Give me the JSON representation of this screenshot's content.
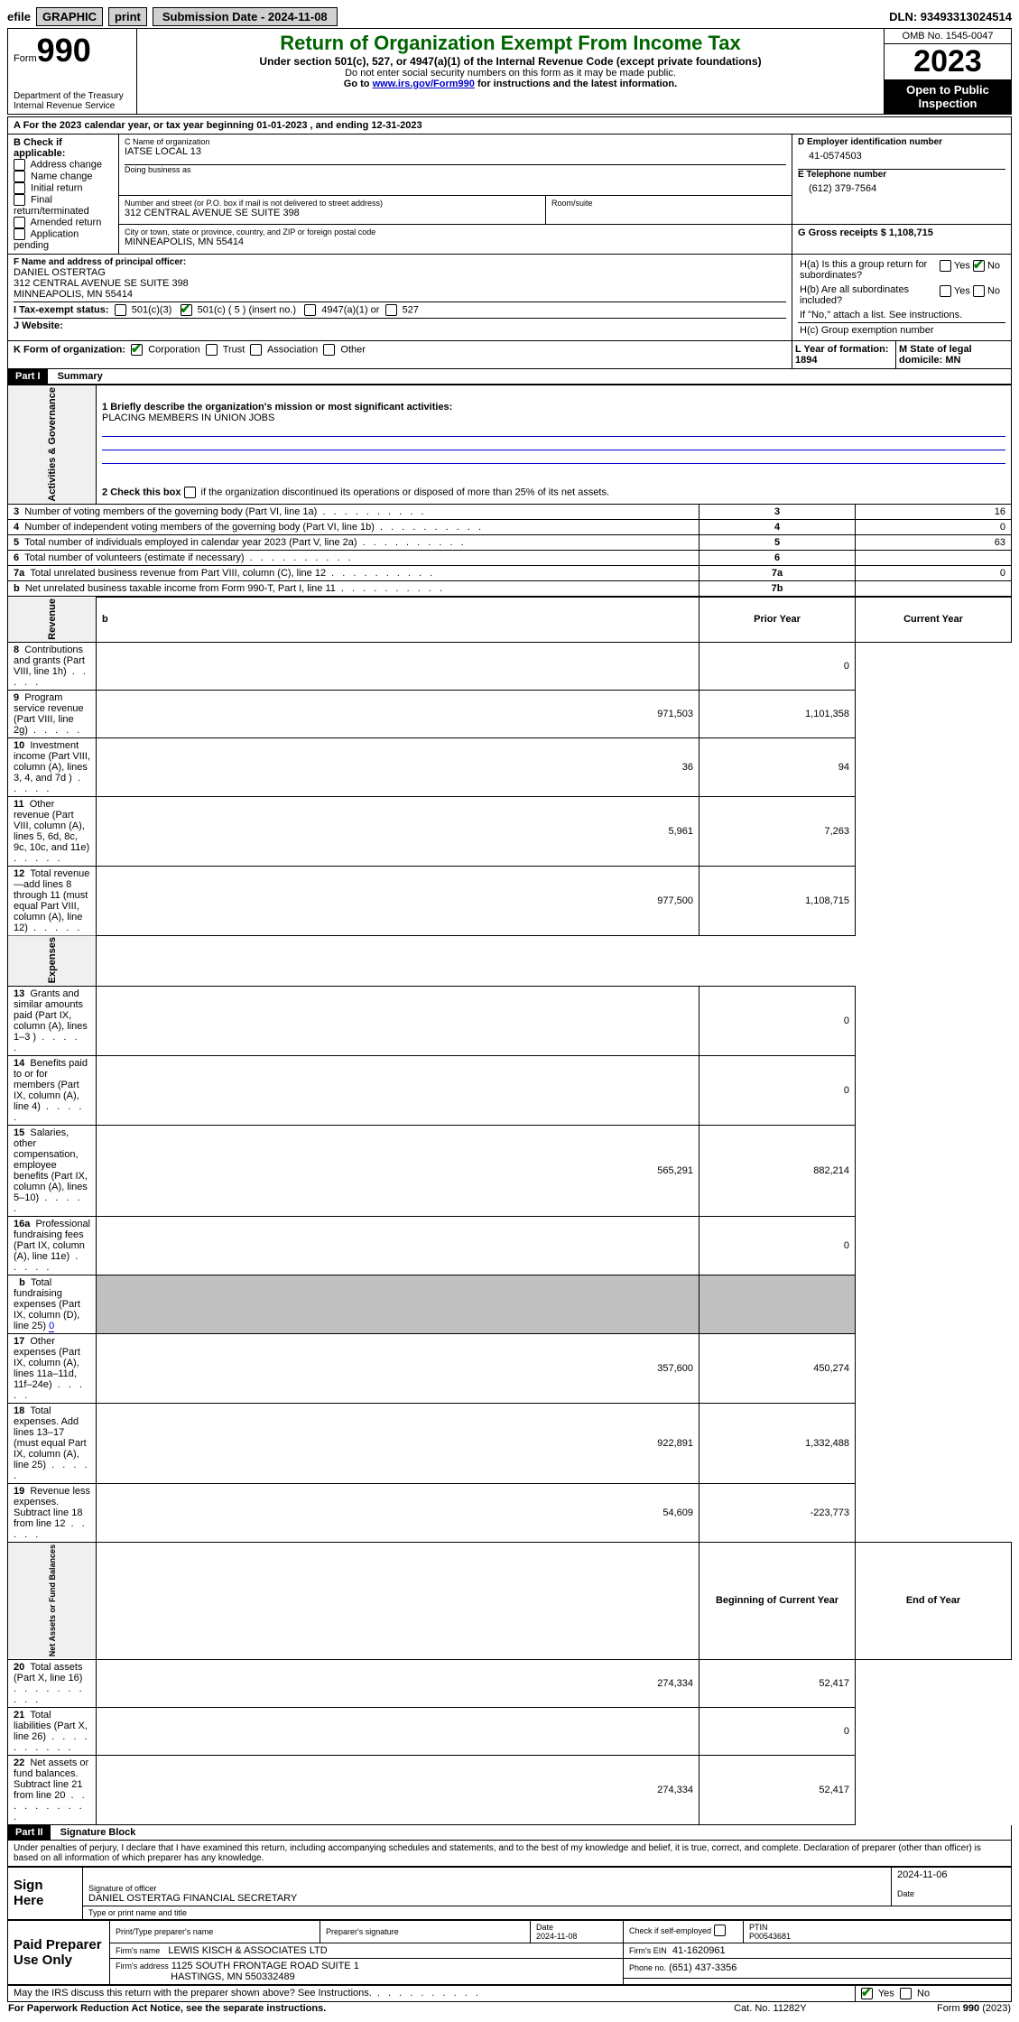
{
  "topbar": {
    "efile": "efile",
    "graphic": "GRAPHIC",
    "print": "print",
    "submission_label": "Submission Date - 2024-11-08",
    "dln_label": "DLN: 93493313024514"
  },
  "header": {
    "form_label": "Form",
    "form_number": "990",
    "title": "Return of Organization Exempt From Income Tax",
    "subtitle": "Under section 501(c), 527, or 4947(a)(1) of the Internal Revenue Code (except private foundations)",
    "ssn_note": "Do not enter social security numbers on this form as it may be made public.",
    "goto_prefix": "Go to ",
    "goto_link": "www.irs.gov/Form990",
    "goto_suffix": " for instructions and the latest information.",
    "department": "Department of the Treasury\nInternal Revenue Service",
    "omb": "OMB No. 1545-0047",
    "year": "2023",
    "open_public": "Open to Public Inspection"
  },
  "section_a": {
    "line_a": "A For the 2023 calendar year, or tax year beginning 01-01-2023    , and ending 12-31-2023",
    "b_label": "B Check if applicable:",
    "b_options": [
      "Address change",
      "Name change",
      "Initial return",
      "Final return/terminated",
      "Amended return",
      "Application pending"
    ],
    "c_label": "C Name of organization",
    "c_value": "IATSE LOCAL 13",
    "dba_label": "Doing business as",
    "street_label": "Number and street (or P.O. box if mail is not delivered to street address)",
    "street_value": "312 CENTRAL AVENUE SE SUITE 398",
    "room_label": "Room/suite",
    "city_label": "City or town, state or province, country, and ZIP or foreign postal code",
    "city_value": "MINNEAPOLIS, MN  55414",
    "d_label": "D Employer identification number",
    "d_value": "41-0574503",
    "e_label": "E Telephone number",
    "e_value": "(612) 379-7564",
    "g_label": "G Gross receipts $ 1,108,715",
    "f_label": "F  Name and address of principal officer:",
    "f_name": "DANIEL OSTERTAG",
    "f_addr1": "312 CENTRAL AVENUE SE SUITE 398",
    "f_addr2": "MINNEAPOLIS, MN  55414",
    "h_a": "H(a)  Is this a group return for subordinates?",
    "h_b": "H(b)  Are all subordinates included?",
    "h_b_note": "If \"No,\" attach a list. See instructions.",
    "h_c": "H(c)  Group exemption number",
    "yes": "Yes",
    "no": "No",
    "i_label": "I   Tax-exempt status:",
    "i_501c3": "501(c)(3)",
    "i_501c": "501(c) ( 5 ) (insert no.)",
    "i_4947": "4947(a)(1) or",
    "i_527": "527",
    "j_label": "J   Website:",
    "k_label": "K Form of organization:",
    "k_corp": "Corporation",
    "k_trust": "Trust",
    "k_assoc": "Association",
    "k_other": "Other",
    "l_label": "L Year of formation: 1894",
    "m_label": "M State of legal domicile: MN"
  },
  "part1": {
    "header": "Part I",
    "title": "Summary",
    "line1_label": "1  Briefly describe the organization's mission or most significant activities:",
    "line1_value": "PLACING MEMBERS IN UNION JOBS",
    "line2": "2   Check this box ",
    "line2_suffix": " if the organization discontinued its operations or disposed of more than 25% of its net assets.",
    "governance_label": "Activities & Governance",
    "revenue_label": "Revenue",
    "expenses_label": "Expenses",
    "netassets_label": "Net Assets or Fund Balances",
    "rows_gov": [
      {
        "n": "3",
        "text": "Number of voting members of the governing body (Part VI, line 1a)",
        "box": "3",
        "val": "16"
      },
      {
        "n": "4",
        "text": "Number of independent voting members of the governing body (Part VI, line 1b)",
        "box": "4",
        "val": "0"
      },
      {
        "n": "5",
        "text": "Total number of individuals employed in calendar year 2023 (Part V, line 2a)",
        "box": "5",
        "val": "63"
      },
      {
        "n": "6",
        "text": "Total number of volunteers (estimate if necessary)",
        "box": "6",
        "val": ""
      },
      {
        "n": "7a",
        "text": "Total unrelated business revenue from Part VIII, column (C), line 12",
        "box": "7a",
        "val": "0"
      },
      {
        "n": "b",
        "text": "Net unrelated business taxable income from Form 990-T, Part I, line 11",
        "box": "7b",
        "val": ""
      }
    ],
    "col_prior": "Prior Year",
    "col_current": "Current Year",
    "rows_rev": [
      {
        "n": "8",
        "text": "Contributions and grants (Part VIII, line 1h)",
        "prior": "",
        "curr": "0"
      },
      {
        "n": "9",
        "text": "Program service revenue (Part VIII, line 2g)",
        "prior": "971,503",
        "curr": "1,101,358"
      },
      {
        "n": "10",
        "text": "Investment income (Part VIII, column (A), lines 3, 4, and 7d )",
        "prior": "36",
        "curr": "94"
      },
      {
        "n": "11",
        "text": "Other revenue (Part VIII, column (A), lines 5, 6d, 8c, 9c, 10c, and 11e)",
        "prior": "5,961",
        "curr": "7,263"
      },
      {
        "n": "12",
        "text": "Total revenue—add lines 8 through 11 (must equal Part VIII, column (A), line 12)",
        "prior": "977,500",
        "curr": "1,108,715"
      }
    ],
    "rows_exp": [
      {
        "n": "13",
        "text": "Grants and similar amounts paid (Part IX, column (A), lines 1–3 )",
        "prior": "",
        "curr": "0"
      },
      {
        "n": "14",
        "text": "Benefits paid to or for members (Part IX, column (A), line 4)",
        "prior": "",
        "curr": "0"
      },
      {
        "n": "15",
        "text": "Salaries, other compensation, employee benefits (Part IX, column (A), lines 5–10)",
        "prior": "565,291",
        "curr": "882,214"
      },
      {
        "n": "16a",
        "text": "Professional fundraising fees (Part IX, column (A), line 11e)",
        "prior": "",
        "curr": "0"
      },
      {
        "n": "b",
        "text": "Total fundraising expenses (Part IX, column (D), line 25) ",
        "prior": "GRAY",
        "curr": "GRAY",
        "special": "0"
      },
      {
        "n": "17",
        "text": "Other expenses (Part IX, column (A), lines 11a–11d, 11f–24e)",
        "prior": "357,600",
        "curr": "450,274"
      },
      {
        "n": "18",
        "text": "Total expenses. Add lines 13–17 (must equal Part IX, column (A), line 25)",
        "prior": "922,891",
        "curr": "1,332,488"
      },
      {
        "n": "19",
        "text": "Revenue less expenses. Subtract line 18 from line 12",
        "prior": "54,609",
        "curr": "-223,773"
      }
    ],
    "col_begin": "Beginning of Current Year",
    "col_end": "End of Year",
    "rows_net": [
      {
        "n": "20",
        "text": "Total assets (Part X, line 16)",
        "prior": "274,334",
        "curr": "52,417"
      },
      {
        "n": "21",
        "text": "Total liabilities (Part X, line 26)",
        "prior": "",
        "curr": "0"
      },
      {
        "n": "22",
        "text": "Net assets or fund balances. Subtract line 21 from line 20",
        "prior": "274,334",
        "curr": "52,417"
      }
    ]
  },
  "part2": {
    "header": "Part II",
    "title": "Signature Block",
    "declaration": "Under penalties of perjury, I declare that I have examined this return, including accompanying schedules and statements, and to the best of my knowledge and belief, it is true, correct, and complete. Declaration of preparer (other than officer) is based on all information of which preparer has any knowledge.",
    "sign_here": "Sign Here",
    "sig_date": "2024-11-06",
    "sig_officer_label": "Signature of officer",
    "sig_officer_name": "DANIEL OSTERTAG  FINANCIAL SECRETARY",
    "type_name_label": "Type or print name and title",
    "date_label": "Date",
    "paid_prep": "Paid Preparer Use Only",
    "prep_name_label": "Print/Type preparer's name",
    "prep_sig_label": "Preparer's signature",
    "prep_date": "Date\n2024-11-08",
    "check_self": "Check         if self-employed",
    "ptin_label": "PTIN",
    "ptin": "P00543681",
    "firm_name_label": "Firm's name",
    "firm_name": "LEWIS KISCH & ASSOCIATES LTD",
    "firm_ein_label": "Firm's EIN",
    "firm_ein": "41-1620961",
    "firm_addr_label": "Firm's address",
    "firm_addr1": "1125 SOUTH FRONTAGE ROAD SUITE 1",
    "firm_addr2": "HASTINGS, MN  550332489",
    "phone_label": "Phone no.",
    "phone": "(651) 437-3356",
    "discuss": "May the IRS discuss this return with the preparer shown above? See Instructions.",
    "paperwork": "For Paperwork Reduction Act Notice, see the separate instructions.",
    "catno": "Cat. No. 11282Y",
    "formfooter": "Form 990 (2023)"
  }
}
